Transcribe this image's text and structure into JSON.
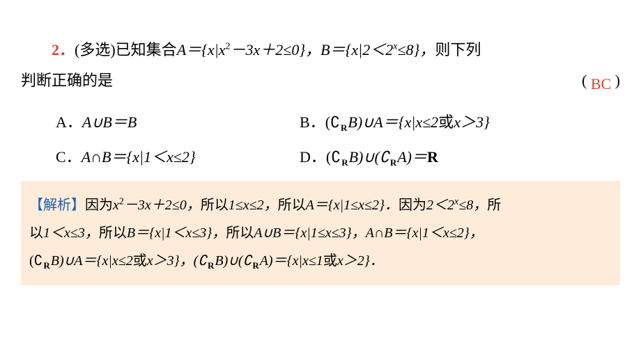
{
  "question": {
    "number": "2．",
    "type_label": "(多选)",
    "stem_part1": "已知集合",
    "stem_setA_prefix": "A＝{x|x",
    "stem_setA_exp": "2",
    "stem_setA_mid": "－3x＋2≤0}，",
    "stem_setB_prefix": "B＝{x|2＜2",
    "stem_setB_exp": "x",
    "stem_setB_suffix": "≤8}，",
    "stem_tail": "则下列",
    "stem_line2": "判断正确的是",
    "paren_open": "(",
    "answer": "BC",
    "paren_close": ")"
  },
  "options": {
    "A": {
      "label": "A．",
      "content": "A∪B＝B"
    },
    "B": {
      "label": "B．",
      "prefix": "(∁",
      "sub": "R",
      "mid": "B)∪A＝{x|x≤2",
      "or": "或",
      "suffix": "x＞3}"
    },
    "C": {
      "label": "C．",
      "content": "A∩B＝{x|1＜x≤2}"
    },
    "D": {
      "label": "D．",
      "prefix": "(∁",
      "sub1": "R",
      "mid1": "B)∪(∁",
      "sub2": "R",
      "mid2": "A)＝",
      "bold_R": "R"
    }
  },
  "explanation": {
    "label": "【解析】",
    "p1_a": "因为",
    "p1_b": "x",
    "p1_c": "2",
    "p1_d": "－3x＋2≤0，",
    "p1_e": "所以",
    "p1_f": "1≤x≤2，",
    "p1_g": "所以",
    "p1_h": "A＝{x|1≤x≤2}．",
    "p1_i": "因为",
    "p1_j": "2＜2",
    "p1_k": "x",
    "p1_l": "≤8，",
    "p1_m": "所",
    "p2_a": "以",
    "p2_b": "1＜x≤3，",
    "p2_c": "所以",
    "p2_d": "B＝{x|1＜x≤3}，",
    "p2_e": "所以",
    "p2_f": "A∪B＝{x|1≤x≤3}，A∩B＝{x|1＜x≤2}，",
    "p3_a": "(∁",
    "p3_sub1": "R",
    "p3_b": "B)∪A＝{x|x≤2",
    "p3_or1": "或",
    "p3_c": "x＞3}，(∁",
    "p3_sub2": "R",
    "p3_d": "B)∪(∁",
    "p3_sub3": "R",
    "p3_e": "A)＝{x|x≤1",
    "p3_or2": "或",
    "p3_f": "x＞2}．"
  },
  "colors": {
    "red": "#d94030",
    "blue": "#195eb8",
    "explanation_bg": "#fdecda",
    "text": "#000000",
    "background": "#ffffff"
  }
}
